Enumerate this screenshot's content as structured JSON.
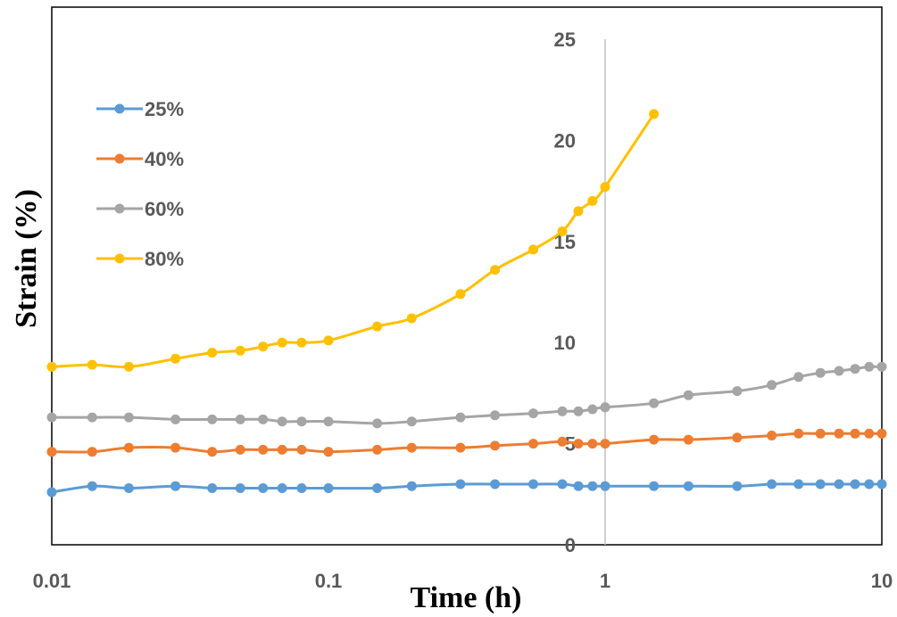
{
  "chart_data": {
    "type": "line",
    "xlabel": "Time (h)",
    "ylabel": "Strain (%)",
    "x_scale": "log",
    "xlim": [
      0.01,
      10
    ],
    "ylim": [
      0,
      25
    ],
    "x_ticks": [
      "0.01",
      "0.1",
      "1",
      "10"
    ],
    "y_ticks": [
      "0",
      "5",
      "10",
      "15",
      "20",
      "25"
    ],
    "grid": false,
    "legend_position": "top-left",
    "series": [
      {
        "name": "25%",
        "color": "#5B9BD5",
        "x": [
          0.01,
          0.014,
          0.019,
          0.028,
          0.038,
          0.048,
          0.058,
          0.068,
          0.08,
          0.1,
          0.15,
          0.2,
          0.3,
          0.4,
          0.55,
          0.7,
          0.8,
          0.9,
          1.0,
          1.5,
          2.0,
          3.0,
          4.0,
          5.0,
          6.0,
          7.0,
          8.0,
          9.0,
          10.0
        ],
        "y": [
          2.6,
          2.9,
          2.8,
          2.9,
          2.8,
          2.8,
          2.8,
          2.8,
          2.8,
          2.8,
          2.8,
          2.9,
          3.0,
          3.0,
          3.0,
          3.0,
          2.9,
          2.9,
          2.9,
          2.9,
          2.9,
          2.9,
          3.0,
          3.0,
          3.0,
          3.0,
          3.0,
          3.0,
          3.0
        ]
      },
      {
        "name": "40%",
        "color": "#ED7D31",
        "x": [
          0.01,
          0.014,
          0.019,
          0.028,
          0.038,
          0.048,
          0.058,
          0.068,
          0.08,
          0.1,
          0.15,
          0.2,
          0.3,
          0.4,
          0.55,
          0.7,
          0.8,
          0.9,
          1.0,
          1.5,
          2.0,
          3.0,
          4.0,
          5.0,
          6.0,
          7.0,
          8.0,
          9.0,
          10.0
        ],
        "y": [
          4.6,
          4.6,
          4.8,
          4.8,
          4.6,
          4.7,
          4.7,
          4.7,
          4.7,
          4.6,
          4.7,
          4.8,
          4.8,
          4.9,
          5.0,
          5.1,
          5.0,
          5.0,
          5.0,
          5.2,
          5.2,
          5.3,
          5.4,
          5.5,
          5.5,
          5.5,
          5.5,
          5.5,
          5.5
        ]
      },
      {
        "name": "60%",
        "color": "#A5A5A5",
        "x": [
          0.01,
          0.014,
          0.019,
          0.028,
          0.038,
          0.048,
          0.058,
          0.068,
          0.08,
          0.1,
          0.15,
          0.2,
          0.3,
          0.4,
          0.55,
          0.7,
          0.8,
          0.9,
          1.0,
          1.5,
          2.0,
          3.0,
          4.0,
          5.0,
          6.0,
          7.0,
          8.0,
          9.0,
          10.0
        ],
        "y": [
          6.3,
          6.3,
          6.3,
          6.2,
          6.2,
          6.2,
          6.2,
          6.1,
          6.1,
          6.1,
          6.0,
          6.1,
          6.3,
          6.4,
          6.5,
          6.6,
          6.6,
          6.7,
          6.8,
          7.0,
          7.4,
          7.6,
          7.9,
          8.3,
          8.5,
          8.6,
          8.7,
          8.8,
          8.8
        ]
      },
      {
        "name": "80%",
        "color": "#FFC000",
        "x": [
          0.01,
          0.014,
          0.019,
          0.028,
          0.038,
          0.048,
          0.058,
          0.068,
          0.08,
          0.1,
          0.15,
          0.2,
          0.3,
          0.4,
          0.55,
          0.7,
          0.8,
          0.9,
          1.0,
          1.5
        ],
        "y": [
          8.8,
          8.9,
          8.8,
          9.2,
          9.5,
          9.6,
          9.8,
          10.0,
          10.0,
          10.1,
          10.8,
          11.2,
          12.4,
          13.6,
          14.6,
          15.5,
          16.5,
          17.0,
          17.7,
          21.3
        ]
      }
    ]
  }
}
